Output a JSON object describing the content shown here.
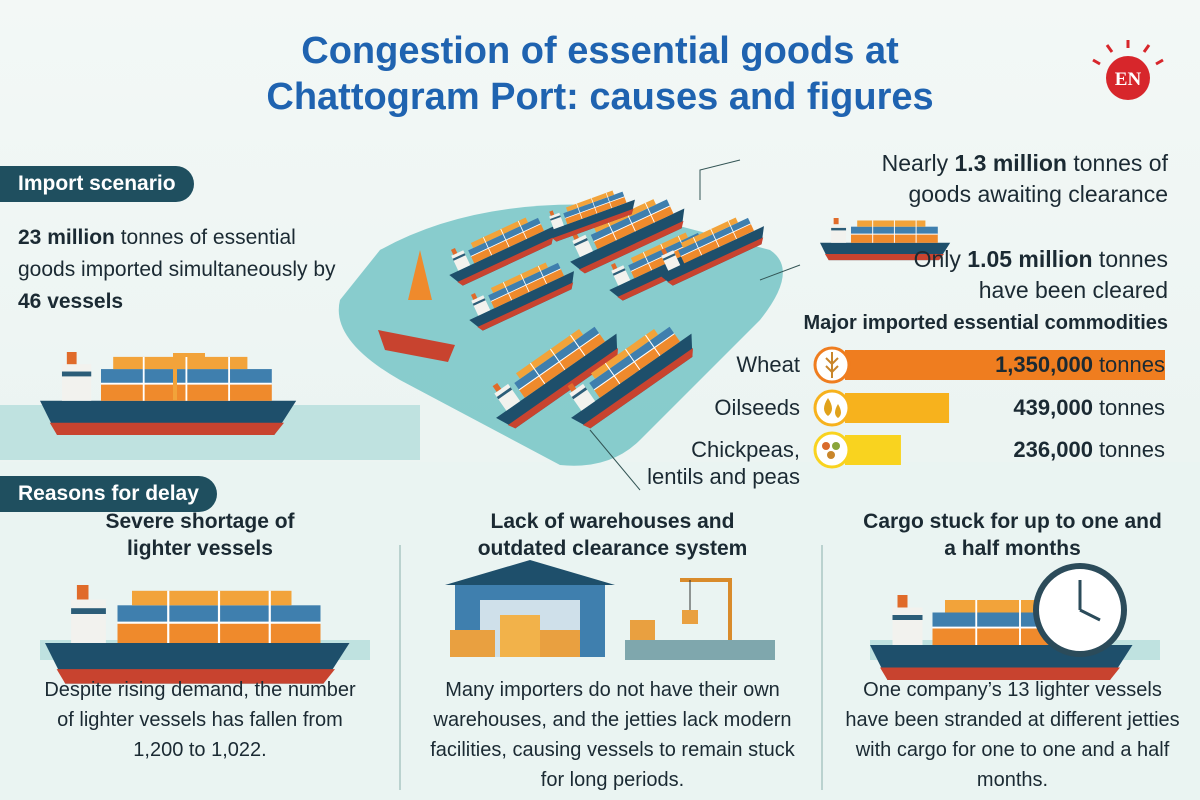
{
  "header": {
    "title_line1": "Congestion of essential goods at",
    "title_line2": "Chattogram Port: causes and figures",
    "logo": "EN"
  },
  "import_scenario": {
    "label": "Import scenario",
    "text": [
      {
        "t": "23 million",
        "b": true
      },
      {
        "t": " tonnes of essential goods imported simultaneously by "
      },
      {
        "t": "46 vessels",
        "b": true
      }
    ]
  },
  "awaiting": {
    "text": [
      {
        "t": "Nearly "
      },
      {
        "t": "1.3 million",
        "b": true
      },
      {
        "t": " tonnes of goods awaiting clearance"
      }
    ]
  },
  "cleared": {
    "text": [
      {
        "t": "Only "
      },
      {
        "t": "1.05 million",
        "b": true
      },
      {
        "t": " tonnes have been cleared"
      }
    ]
  },
  "commodities": {
    "title": "Major imported essential commodities",
    "unit": "tonnes",
    "items": [
      {
        "name": "Wheat",
        "value": 1350000,
        "value_label": "1,350,000",
        "color": "#ef7d1f"
      },
      {
        "name": "Oilseeds",
        "value": 439000,
        "value_label": "439,000",
        "color": "#f7b21d"
      },
      {
        "name": "Chickpeas, lentils and peas",
        "value": 236000,
        "value_label": "236,000",
        "color": "#f9d31f"
      }
    ]
  },
  "reasons": {
    "label": "Reasons for delay",
    "items": [
      {
        "title": "Severe shortage of lighter vessels",
        "text": "Despite rising demand, the number of lighter vessels has fallen from 1,200 to 1,022."
      },
      {
        "title": "Lack of warehouses and outdated clearance system",
        "text": "Many importers do not have their own warehouses, and the jetties lack modern facilities, causing vessels to remain stuck for long periods."
      },
      {
        "title": "Cargo stuck for up to one and a half months",
        "text": "One company’s 13 lighter vessels have been stranded at different jetties with cargo for one to one and a half months."
      }
    ]
  }
}
